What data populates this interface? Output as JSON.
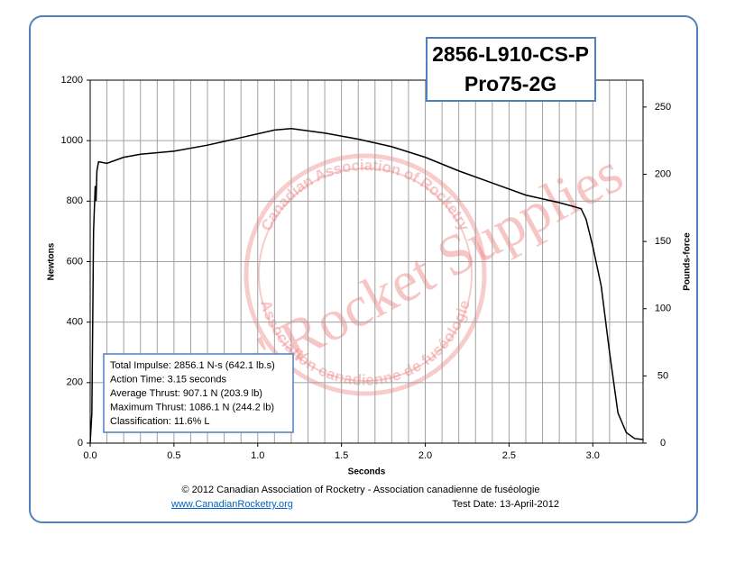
{
  "chart_data": {
    "type": "line",
    "title": "2856-L910-CS-P",
    "subtitle": "Pro75-2G",
    "x_label": "Seconds",
    "y_label": "Newtons",
    "y2_label": "Pounds-force",
    "x": [
      0.0,
      0.01,
      0.02,
      0.03,
      0.035,
      0.04,
      0.05,
      0.1,
      0.2,
      0.3,
      0.5,
      0.7,
      0.9,
      1.1,
      1.2,
      1.4,
      1.6,
      1.8,
      2.0,
      2.2,
      2.4,
      2.6,
      2.8,
      2.9,
      2.93,
      2.96,
      3.0,
      3.05,
      3.1,
      3.15,
      3.2,
      3.25,
      3.3
    ],
    "series": [
      {
        "name": "Thrust",
        "color": "#000000",
        "values": [
          0,
          100,
          700,
          850,
          800,
          900,
          930,
          925,
          945,
          955,
          965,
          985,
          1010,
          1035,
          1040,
          1025,
          1005,
          980,
          945,
          900,
          860,
          820,
          795,
          780,
          775,
          740,
          650,
          520,
          300,
          100,
          35,
          15,
          12
        ]
      }
    ],
    "xlim": [
      0,
      3.3
    ],
    "xticks": [
      {
        "value": 0,
        "label": "0.0"
      },
      0.5,
      {
        "value": 1,
        "label": "1.0"
      },
      1.5,
      {
        "value": 2,
        "label": "2.0"
      },
      2.5,
      {
        "value": 3,
        "label": "3.0"
      }
    ],
    "x_minor_grid": [
      0.1,
      0.2,
      0.3,
      0.4,
      0.5,
      0.6,
      0.7,
      0.8,
      0.9,
      1.0,
      1.1,
      1.2,
      1.3,
      1.4,
      1.5,
      1.6,
      1.7,
      1.8,
      1.9,
      2.0,
      2.1,
      2.2,
      2.3,
      2.4,
      2.5,
      2.6,
      2.7,
      2.8,
      2.9,
      3.0,
      3.1,
      3.2
    ],
    "ylim": [
      0,
      1200
    ],
    "yticks": [
      0,
      200,
      400,
      600,
      800,
      1000,
      1200
    ],
    "y2lim": [
      0,
      270
    ],
    "y2ticks": [
      0,
      50,
      100,
      150,
      200,
      250
    ],
    "grid": true,
    "annotations": [
      "Total Impulse: 2856.1 N-s (642.1 lb.s)",
      "Action Time: 3.15 seconds",
      "Average Thrust: 907.1 N (203.9 lb)",
      "Maximum Thrust: 1086.1 N (244.2 lb)",
      "Classification: 11.6% L"
    ]
  },
  "footer": {
    "copyright": "© 2012 Canadian Association of Rocketry - Association canadienne de fuséologie",
    "link": "www.CanadianRocketry.org",
    "date": "Test  Date: 13-April-2012"
  },
  "watermark": {
    "text": "Chris' Rocket Supplies",
    "ring_top": "Canadian Association of Rocketry",
    "ring_bottom": "Association canadienne de fuséologie"
  }
}
